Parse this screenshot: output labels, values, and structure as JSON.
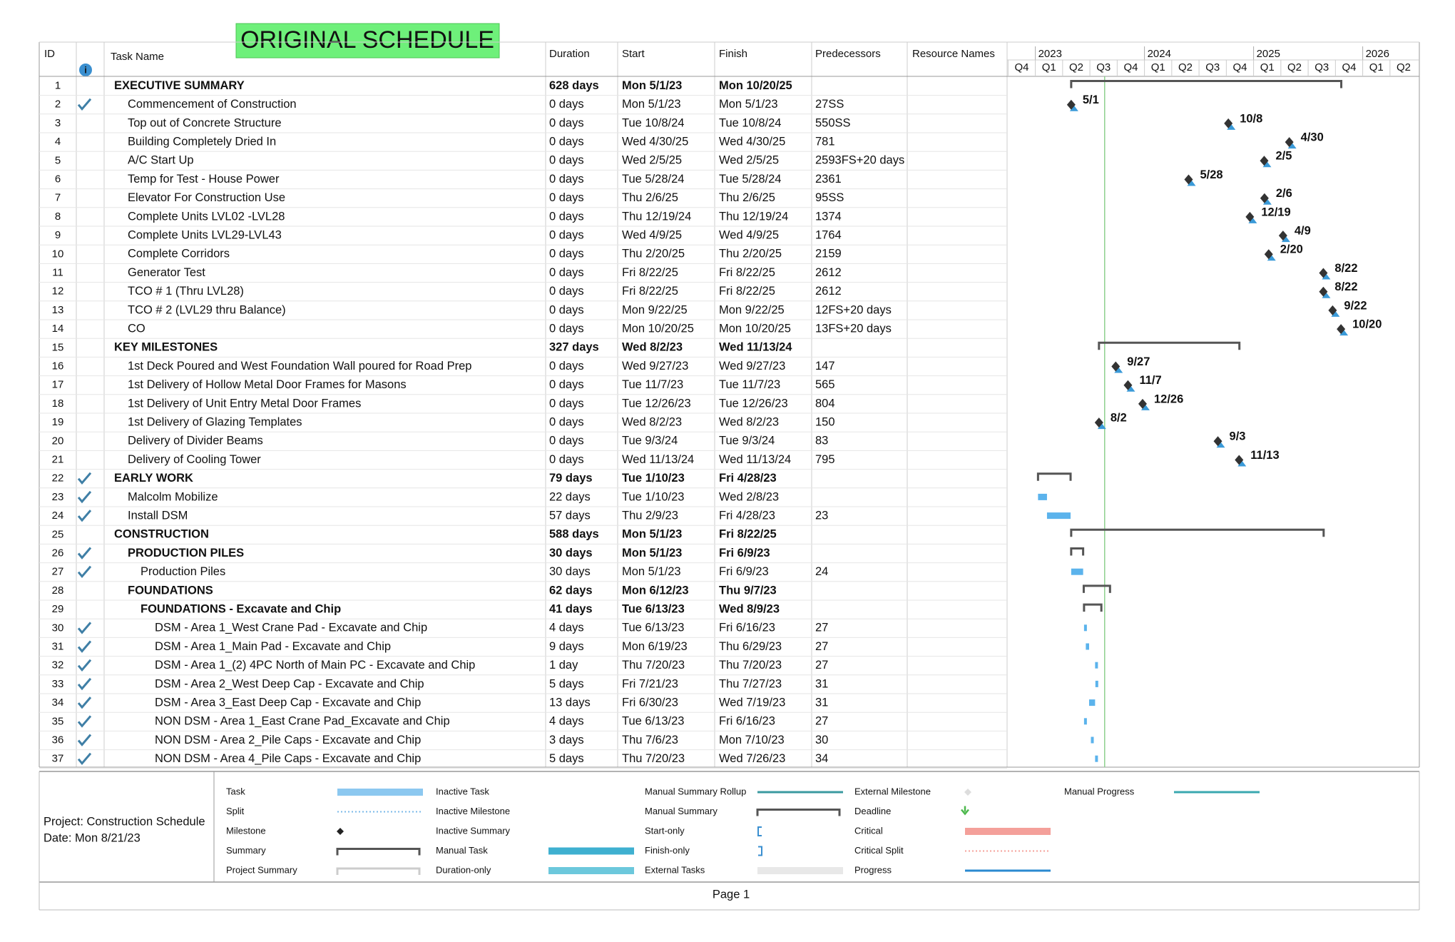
{
  "title": "ORIGINAL SCHEDULE",
  "columns": {
    "id": "ID",
    "name": "Task Name",
    "duration": "Duration",
    "start": "Start",
    "finish": "Finish",
    "pred": "Predecessors",
    "resource": "Resource Names"
  },
  "timeline": {
    "years": [
      "2023",
      "2024",
      "2025",
      "2026"
    ],
    "quarters": [
      "Q4",
      "Q1",
      "Q2",
      "Q3",
      "Q4",
      "Q1",
      "Q2",
      "Q3",
      "Q4",
      "Q1",
      "Q2",
      "Q3",
      "Q4",
      "Q1",
      "Q2"
    ]
  },
  "rows": [
    {
      "id": "1",
      "name": "EXECUTIVE SUMMARY",
      "level": 0,
      "summary": true,
      "duration": "628 days",
      "start": "Mon 5/1/23",
      "finish": "Mon 10/20/25"
    },
    {
      "id": "2",
      "name": "Commencement of Construction",
      "level": 1,
      "done": true,
      "duration": "0 days",
      "start": "Mon 5/1/23",
      "finish": "Mon 5/1/23",
      "pred": "27SS",
      "label": "5/1"
    },
    {
      "id": "3",
      "name": "Top out of Concrete Structure",
      "level": 1,
      "duration": "0 days",
      "start": "Tue 10/8/24",
      "finish": "Tue 10/8/24",
      "pred": "550SS",
      "label": "10/8"
    },
    {
      "id": "4",
      "name": "Building Completely Dried In",
      "level": 1,
      "duration": "0 days",
      "start": "Wed 4/30/25",
      "finish": "Wed 4/30/25",
      "pred": "781",
      "label": "4/30"
    },
    {
      "id": "5",
      "name": "A/C Start Up",
      "level": 1,
      "duration": "0 days",
      "start": "Wed 2/5/25",
      "finish": "Wed 2/5/25",
      "pred": "2593FS+20 days",
      "label": "2/5"
    },
    {
      "id": "6",
      "name": "Temp for Test - House Power",
      "level": 1,
      "duration": "0 days",
      "start": "Tue 5/28/24",
      "finish": "Tue 5/28/24",
      "pred": "2361",
      "label": "5/28"
    },
    {
      "id": "7",
      "name": "Elevator For Construction Use",
      "level": 1,
      "duration": "0 days",
      "start": "Thu 2/6/25",
      "finish": "Thu 2/6/25",
      "pred": "95SS",
      "label": "2/6"
    },
    {
      "id": "8",
      "name": "Complete Units LVL02 -LVL28",
      "level": 1,
      "duration": "0 days",
      "start": "Thu 12/19/24",
      "finish": "Thu 12/19/24",
      "pred": "1374",
      "label": "12/19"
    },
    {
      "id": "9",
      "name": "Complete Units LVL29-LVL43",
      "level": 1,
      "duration": "0 days",
      "start": "Wed 4/9/25",
      "finish": "Wed 4/9/25",
      "pred": "1764",
      "label": "4/9"
    },
    {
      "id": "10",
      "name": "Complete Corridors",
      "level": 1,
      "duration": "0 days",
      "start": "Thu 2/20/25",
      "finish": "Thu 2/20/25",
      "pred": "2159",
      "label": "2/20"
    },
    {
      "id": "11",
      "name": "Generator Test",
      "level": 1,
      "duration": "0 days",
      "start": "Fri 8/22/25",
      "finish": "Fri 8/22/25",
      "pred": "2612",
      "label": "8/22"
    },
    {
      "id": "12",
      "name": "TCO # 1 (Thru LVL28)",
      "level": 1,
      "duration": "0 days",
      "start": "Fri 8/22/25",
      "finish": "Fri 8/22/25",
      "pred": "2612",
      "label": "8/22"
    },
    {
      "id": "13",
      "name": "TCO # 2 (LVL29 thru Balance)",
      "level": 1,
      "duration": "0 days",
      "start": "Mon 9/22/25",
      "finish": "Mon 9/22/25",
      "pred": "12FS+20 days",
      "label": "9/22"
    },
    {
      "id": "14",
      "name": "CO",
      "level": 1,
      "duration": "0 days",
      "start": "Mon 10/20/25",
      "finish": "Mon 10/20/25",
      "pred": "13FS+20 days",
      "label": "10/20"
    },
    {
      "id": "15",
      "name": "KEY MILESTONES",
      "level": 0,
      "summary": true,
      "duration": "327 days",
      "start": "Wed 8/2/23",
      "finish": "Wed 11/13/24"
    },
    {
      "id": "16",
      "name": "1st Deck Poured and West Foundation Wall poured for Road Prep",
      "level": 1,
      "duration": "0 days",
      "start": "Wed 9/27/23",
      "finish": "Wed 9/27/23",
      "pred": "147",
      "label": "9/27"
    },
    {
      "id": "17",
      "name": "1st Delivery of Hollow Metal Door Frames for Masons",
      "level": 1,
      "duration": "0 days",
      "start": "Tue 11/7/23",
      "finish": "Tue 11/7/23",
      "pred": "565",
      "label": "11/7"
    },
    {
      "id": "18",
      "name": "1st Delivery of Unit Entry Metal Door Frames",
      "level": 1,
      "duration": "0 days",
      "start": "Tue 12/26/23",
      "finish": "Tue 12/26/23",
      "pred": "804",
      "label": "12/26"
    },
    {
      "id": "19",
      "name": "1st Delivery of Glazing Templates",
      "level": 1,
      "duration": "0 days",
      "start": "Wed 8/2/23",
      "finish": "Wed 8/2/23",
      "pred": "150",
      "label": "8/2"
    },
    {
      "id": "20",
      "name": "Delivery of Divider Beams",
      "level": 1,
      "duration": "0 days",
      "start": "Tue 9/3/24",
      "finish": "Tue 9/3/24",
      "pred": "83",
      "label": "9/3"
    },
    {
      "id": "21",
      "name": "Delivery of Cooling Tower",
      "level": 1,
      "duration": "0 days",
      "start": "Wed 11/13/24",
      "finish": "Wed 11/13/24",
      "pred": "795",
      "label": "11/13"
    },
    {
      "id": "22",
      "name": "EARLY WORK",
      "level": 0,
      "summary": true,
      "done": true,
      "duration": "79 days",
      "start": "Tue 1/10/23",
      "finish": "Fri 4/28/23"
    },
    {
      "id": "23",
      "name": "Malcolm Mobilize",
      "level": 1,
      "done": true,
      "duration": "22 days",
      "start": "Tue 1/10/23",
      "finish": "Wed 2/8/23"
    },
    {
      "id": "24",
      "name": "Install DSM",
      "level": 1,
      "done": true,
      "duration": "57 days",
      "start": "Thu 2/9/23",
      "finish": "Fri 4/28/23",
      "pred": "23"
    },
    {
      "id": "25",
      "name": "CONSTRUCTION",
      "level": 0,
      "summary": true,
      "duration": "588 days",
      "start": "Mon 5/1/23",
      "finish": "Fri 8/22/25"
    },
    {
      "id": "26",
      "name": "PRODUCTION PILES",
      "level": 1,
      "summary": true,
      "done": true,
      "duration": "30 days",
      "start": "Mon 5/1/23",
      "finish": "Fri 6/9/23"
    },
    {
      "id": "27",
      "name": "Production Piles",
      "level": 2,
      "done": true,
      "duration": "30 days",
      "start": "Mon 5/1/23",
      "finish": "Fri 6/9/23",
      "pred": "24"
    },
    {
      "id": "28",
      "name": "FOUNDATIONS",
      "level": 1,
      "summary": true,
      "duration": "62 days",
      "start": "Mon 6/12/23",
      "finish": "Thu 9/7/23"
    },
    {
      "id": "29",
      "name": "FOUNDATIONS - Excavate and Chip",
      "level": 2,
      "summary": true,
      "duration": "41 days",
      "start": "Tue 6/13/23",
      "finish": "Wed 8/9/23"
    },
    {
      "id": "30",
      "name": "DSM - Area 1_West Crane Pad - Excavate and Chip",
      "level": 3,
      "done": true,
      "duration": "4 days",
      "start": "Tue 6/13/23",
      "finish": "Fri 6/16/23",
      "pred": "27"
    },
    {
      "id": "31",
      "name": "DSM - Area 1_Main Pad - Excavate and Chip",
      "level": 3,
      "done": true,
      "duration": "9 days",
      "start": "Mon 6/19/23",
      "finish": "Thu 6/29/23",
      "pred": "27"
    },
    {
      "id": "32",
      "name": "DSM - Area 1_(2) 4PC North of Main PC - Excavate and Chip",
      "level": 3,
      "done": true,
      "duration": "1 day",
      "start": "Thu 7/20/23",
      "finish": "Thu 7/20/23",
      "pred": "27"
    },
    {
      "id": "33",
      "name": "DSM - Area 2_West Deep Cap - Excavate and Chip",
      "level": 3,
      "done": true,
      "duration": "5 days",
      "start": "Fri 7/21/23",
      "finish": "Thu 7/27/23",
      "pred": "31"
    },
    {
      "id": "34",
      "name": "DSM - Area 3_East Deep Cap - Excavate and Chip",
      "level": 3,
      "done": true,
      "duration": "13 days",
      "start": "Fri 6/30/23",
      "finish": "Wed 7/19/23",
      "pred": "31"
    },
    {
      "id": "35",
      "name": "NON DSM - Area 1_East Crane Pad_Excavate and Chip",
      "level": 3,
      "done": true,
      "duration": "4 days",
      "start": "Tue 6/13/23",
      "finish": "Fri 6/16/23",
      "pred": "27"
    },
    {
      "id": "36",
      "name": "NON DSM - Area 2_Pile Caps - Excavate and Chip",
      "level": 3,
      "done": true,
      "duration": "3 days",
      "start": "Thu 7/6/23",
      "finish": "Mon 7/10/23",
      "pred": "30"
    },
    {
      "id": "37",
      "name": "NON DSM - Area 4_Pile Caps - Excavate and Chip",
      "level": 3,
      "done": true,
      "duration": "5 days",
      "start": "Thu 7/20/23",
      "finish": "Wed 7/26/23",
      "pred": "34"
    }
  ],
  "legend": [
    "Task",
    "Split",
    "Milestone",
    "Summary",
    "Project Summary",
    "Inactive Task",
    "Inactive Milestone",
    "Inactive Summary",
    "Manual Task",
    "Duration-only",
    "Manual Summary Rollup",
    "Manual Summary",
    "Start-only",
    "Finish-only",
    "External Tasks",
    "External Milestone",
    "Deadline",
    "Critical",
    "Critical Split",
    "Progress",
    "Manual Progress"
  ],
  "project": {
    "name": "Project: Construction Schedule",
    "date": "Date: Mon 8/21/23"
  },
  "footer": "Page 1"
}
